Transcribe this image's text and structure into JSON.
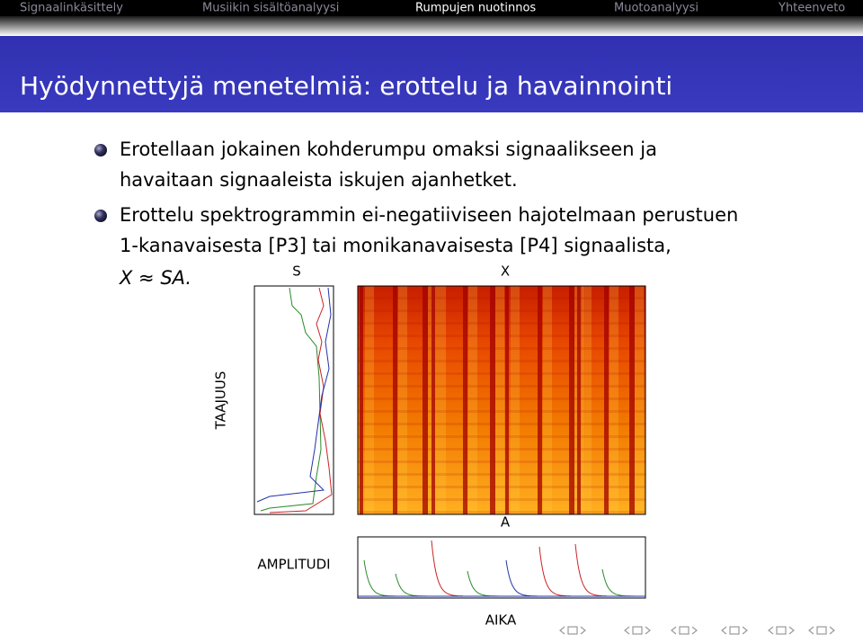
{
  "nav": [
    "Signaalinkäsittely",
    "Musiikin sisältöanalyysi",
    "Rumpujen nuotinnos",
    "Muotoanalyysi",
    "Yhteenveto"
  ],
  "nav_active": 2,
  "title": "Hyödynnettyjä menetelmiä: erottelu ja havainnointi",
  "bullets": [
    [
      "Erotellaan jokainen kohderumpu omaksi signaalikseen ja",
      "havaitaan signaaleista iskujen ajanhetket."
    ],
    [
      "Erottelu spektrogrammin ei-negatiiviseen hajotelmaan perustuen",
      "1-kanavaisesta [P3] tai monikanavaisesta [P4] signaalista,",
      "X ≈ SA."
    ]
  ],
  "figure": {
    "s_label": "S",
    "x_label": "X",
    "a_label": "A",
    "frequency_label": "TAAJUUS",
    "amplitude_label": "AMPLITUDI",
    "time_label": "AIKA"
  }
}
